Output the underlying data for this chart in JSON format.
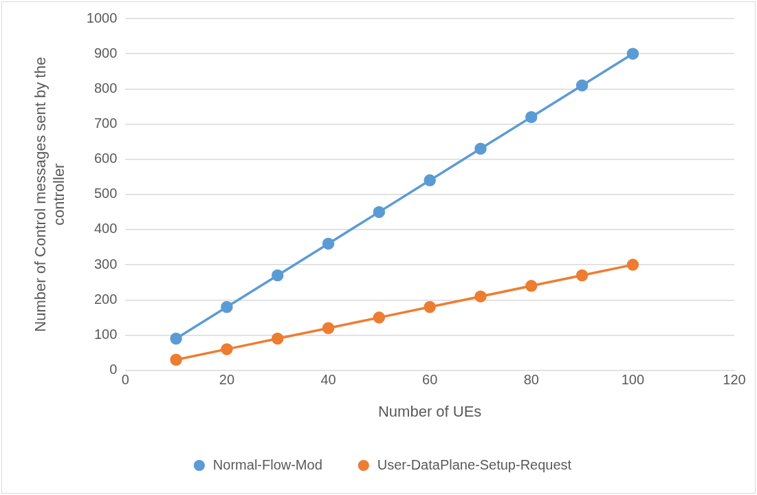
{
  "chart_data": {
    "type": "line",
    "xlabel": "Number of UEs",
    "ylabel": "Number of Control messages sent by the controller",
    "x": [
      10,
      20,
      30,
      40,
      50,
      60,
      70,
      80,
      90,
      100
    ],
    "series": [
      {
        "name": "Normal-Flow-Mod",
        "color": "#5b9bd5",
        "values": [
          90,
          180,
          270,
          360,
          450,
          540,
          630,
          720,
          810,
          900
        ]
      },
      {
        "name": "User-DataPlane-Setup-Request",
        "color": "#ed7d31",
        "values": [
          30,
          60,
          90,
          120,
          150,
          180,
          210,
          240,
          270,
          300
        ]
      }
    ],
    "xlim": [
      0,
      120
    ],
    "xticks": [
      0,
      20,
      40,
      60,
      80,
      100,
      120
    ],
    "ylim": [
      0,
      1000
    ],
    "yticks": [
      0,
      100,
      200,
      300,
      400,
      500,
      600,
      700,
      800,
      900,
      1000
    ],
    "grid": "y",
    "legend": "bottom",
    "marker": "circle",
    "line_style": "solid"
  }
}
